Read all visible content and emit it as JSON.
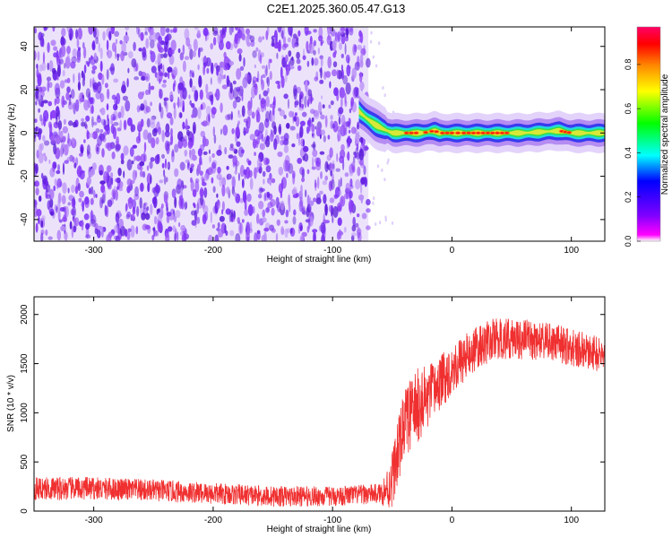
{
  "title": "C2E1.2025.360.05.47.G13",
  "chart_data": [
    {
      "type": "heatmap",
      "xlabel": "Height of straight line (km)",
      "ylabel": "Frequency (Hz)",
      "xlim": [
        -350,
        128
      ],
      "ylim": [
        -50,
        49
      ],
      "x_ticks": [
        -300,
        -200,
        -100,
        0,
        100
      ],
      "y_ticks": [
        -40,
        -20,
        0,
        20,
        40
      ],
      "colorbar": {
        "label": "Normalized spectral amplitude",
        "range": [
          0,
          0.97
        ],
        "ticks": [
          0.0,
          0.2,
          0.4,
          0.6,
          0.8
        ],
        "colors": [
          "#ffffff",
          "#ff00ff",
          "#7f00ff",
          "#0000ff",
          "#00ffff",
          "#00ff00",
          "#ffff00",
          "#ff8800",
          "#ff0000",
          "#ff0066"
        ]
      },
      "noise_region": {
        "x": [
          -350,
          -70
        ],
        "freq": [
          -50,
          49
        ],
        "amplitude_range": [
          0.0,
          0.12
        ],
        "color": "#7b2ff7"
      },
      "signal_band": {
        "x": [
          -78,
          128
        ],
        "center_freq": [
          [
            -78,
            10
          ],
          [
            -72,
            7
          ],
          [
            -65,
            4
          ],
          [
            -58,
            2
          ],
          [
            -50,
            0
          ],
          [
            -40,
            0
          ],
          [
            -25,
            0
          ],
          [
            -15,
            1
          ],
          [
            -10,
            0
          ],
          [
            0,
            0
          ],
          [
            30,
            0
          ],
          [
            60,
            0
          ],
          [
            90,
            1
          ],
          [
            100,
            0
          ],
          [
            128,
            0
          ]
        ],
        "core_amplitude": 0.95
      }
    },
    {
      "type": "line",
      "xlabel": "Height of straight line (km)",
      "ylabel": "SNR (10 * v/v)",
      "xlim": [
        -350,
        128
      ],
      "ylim": [
        0,
        2180
      ],
      "x_ticks": [
        -300,
        -200,
        -100,
        0,
        100
      ],
      "y_ticks": [
        0,
        500,
        1000,
        1500,
        2000
      ],
      "color": "#f03030",
      "trend": [
        [
          -350,
          230
        ],
        [
          -300,
          230
        ],
        [
          -250,
          210
        ],
        [
          -200,
          180
        ],
        [
          -150,
          150
        ],
        [
          -100,
          150
        ],
        [
          -60,
          180
        ],
        [
          -52,
          250
        ],
        [
          -45,
          600
        ],
        [
          -40,
          900
        ],
        [
          -30,
          1050
        ],
        [
          -20,
          1150
        ],
        [
          -10,
          1300
        ],
        [
          0,
          1450
        ],
        [
          10,
          1550
        ],
        [
          20,
          1650
        ],
        [
          35,
          1750
        ],
        [
          60,
          1750
        ],
        [
          90,
          1700
        ],
        [
          128,
          1580
        ]
      ],
      "noise_amplitude": [
        [
          -350,
          120
        ],
        [
          -60,
          100
        ],
        [
          -50,
          300
        ],
        [
          -30,
          400
        ],
        [
          -10,
          280
        ],
        [
          20,
          220
        ],
        [
          128,
          180
        ]
      ]
    }
  ]
}
